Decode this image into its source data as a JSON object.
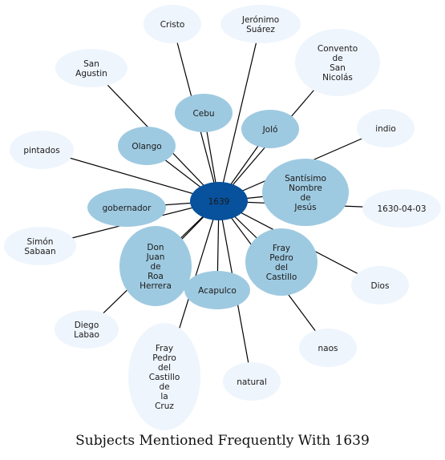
{
  "title": "Subjects Mentioned Frequently With 1639",
  "colors": {
    "center_fill": "#08519c",
    "near_fill": "#9ecae1",
    "far_fill": "#eff5fd",
    "edge": "#000000",
    "text": "#1a1a1a"
  },
  "center": {
    "id": "1639",
    "label": [
      "1639"
    ]
  },
  "near_nodes": [
    {
      "id": "cebu",
      "label": [
        "Cebu"
      ]
    },
    {
      "id": "jolo",
      "label": [
        "Joló"
      ]
    },
    {
      "id": "olango",
      "label": [
        "Olango"
      ]
    },
    {
      "id": "santisimo",
      "label": [
        "Santísimo",
        "Nombre",
        "de",
        "Jesús"
      ]
    },
    {
      "id": "gobernador",
      "label": [
        "gobernador"
      ]
    },
    {
      "id": "donjuan",
      "label": [
        "Don",
        "Juan",
        "de",
        "Roa",
        "Herrera"
      ]
    },
    {
      "id": "frayshort",
      "label": [
        "Fray",
        "Pedro",
        "del",
        "Castillo"
      ]
    },
    {
      "id": "acapulco",
      "label": [
        "Acapulco"
      ]
    }
  ],
  "far_nodes": [
    {
      "id": "cristo",
      "label": [
        "Cristo"
      ]
    },
    {
      "id": "jeronimo",
      "label": [
        "Jerónimo",
        "Suárez"
      ]
    },
    {
      "id": "convento",
      "label": [
        "Convento",
        "de",
        "San",
        "Nicolás"
      ]
    },
    {
      "id": "sanagustin",
      "label": [
        "San",
        "Agustin"
      ]
    },
    {
      "id": "indio",
      "label": [
        "indio"
      ]
    },
    {
      "id": "pintados",
      "label": [
        "pintados"
      ]
    },
    {
      "id": "date",
      "label": [
        "1630-04-03"
      ]
    },
    {
      "id": "simon",
      "label": [
        "Simón",
        "Sabaan"
      ]
    },
    {
      "id": "dios",
      "label": [
        "Dios"
      ]
    },
    {
      "id": "diego",
      "label": [
        "Diego",
        "Labao"
      ]
    },
    {
      "id": "naos",
      "label": [
        "naos"
      ]
    },
    {
      "id": "fraylong",
      "label": [
        "Fray",
        "Pedro",
        "del",
        "Castillo",
        "de",
        "la",
        "Cruz"
      ]
    },
    {
      "id": "natural",
      "label": [
        "natural"
      ]
    }
  ]
}
